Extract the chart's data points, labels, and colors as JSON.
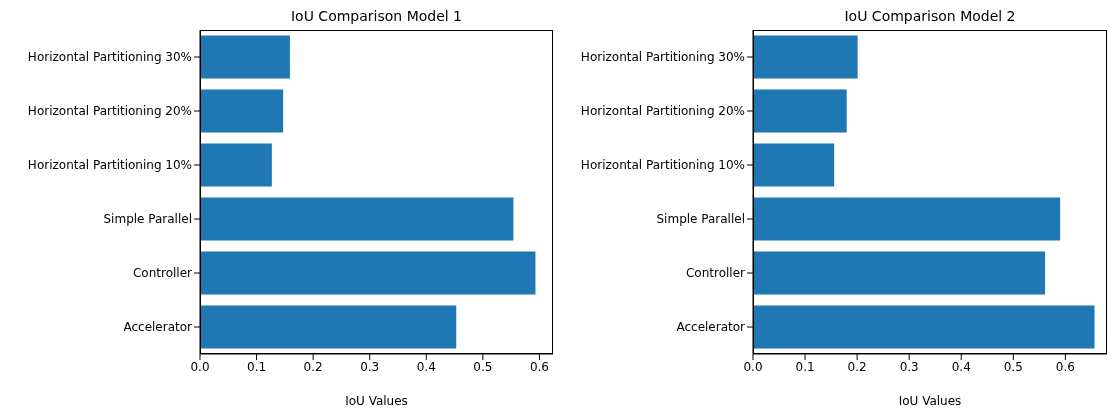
{
  "chart_data": [
    {
      "type": "bar",
      "orientation": "horizontal",
      "title": "IoU Comparison Model 1",
      "xlabel": "IoU Values",
      "categories": [
        "Horizontal Partitioning 30%",
        "Horizontal Partitioning 20%",
        "Horizontal Partitioning 10%",
        "Simple Parallel",
        "Controller",
        "Accelerator"
      ],
      "values": [
        0.159,
        0.147,
        0.127,
        0.554,
        0.593,
        0.453
      ],
      "color": "#1f77b4",
      "xlim": [
        0,
        0.624
      ],
      "xticks": [
        {
          "value": 0,
          "label": "0.0"
        },
        0.1,
        0.2,
        0.3,
        0.4,
        0.5,
        0.6
      ],
      "grid": false,
      "legend": false
    },
    {
      "type": "bar",
      "orientation": "horizontal",
      "title": "IoU Comparison Model 2",
      "xlabel": "IoU Values",
      "categories": [
        "Horizontal Partitioning 30%",
        "Horizontal Partitioning 20%",
        "Horizontal Partitioning 10%",
        "Simple Parallel",
        "Controller",
        "Accelerator"
      ],
      "values": [
        0.201,
        0.18,
        0.156,
        0.59,
        0.561,
        0.656
      ],
      "color": "#1f77b4",
      "xlim": [
        0,
        0.68
      ],
      "xticks": [
        {
          "value": 0,
          "label": "0.0"
        },
        0.1,
        0.2,
        0.3,
        0.4,
        0.5,
        0.6
      ],
      "grid": false,
      "legend": false
    }
  ]
}
